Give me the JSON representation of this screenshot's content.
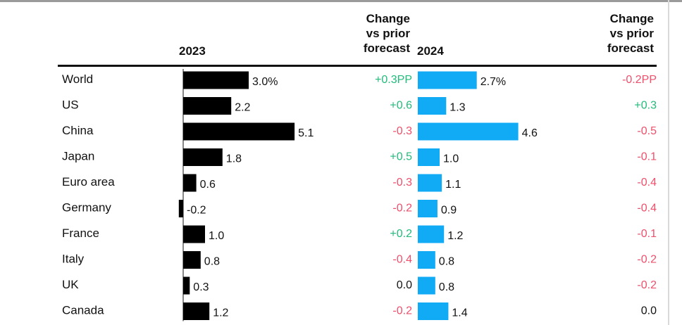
{
  "chart_data": {
    "type": "bar",
    "categories": [
      "World",
      "US",
      "China",
      "Japan",
      "Euro area",
      "Germany",
      "France",
      "Italy",
      "UK",
      "Canada"
    ],
    "series": [
      {
        "name": "2023",
        "values": [
          3.0,
          2.2,
          5.1,
          1.8,
          0.6,
          -0.2,
          1.0,
          0.8,
          0.3,
          1.2
        ],
        "labels": [
          "3.0%",
          "2.2",
          "5.1",
          "1.8",
          "0.6",
          "-0.2",
          "1.0",
          "0.8",
          "0.3",
          "1.2"
        ],
        "color": "#000000",
        "change_header": [
          "Change",
          "vs prior",
          "forecast"
        ],
        "change": [
          "+0.3PP",
          "+0.6",
          "-0.3",
          "+0.5",
          "-0.3",
          "-0.2",
          "+0.2",
          "-0.4",
          "0.0",
          "-0.2"
        ]
      },
      {
        "name": "2024",
        "values": [
          2.7,
          1.3,
          4.6,
          1.0,
          1.1,
          0.9,
          1.2,
          0.8,
          0.8,
          1.4
        ],
        "labels": [
          "2.7%",
          "1.3",
          "4.6",
          "1.0",
          "1.1",
          "0.9",
          "1.2",
          "0.8",
          "0.8",
          "1.4"
        ],
        "color": "#11aaf5",
        "change_header": [
          "Change",
          "vs prior",
          "forecast"
        ],
        "change": [
          "-0.2PP",
          "+0.3",
          "-0.5",
          "-0.1",
          "-0.4",
          "-0.4",
          "-0.1",
          "-0.2",
          "-0.2",
          "0.0"
        ]
      }
    ],
    "colors": {
      "positive": "#22bb7a",
      "negative": "#ef4f6b",
      "neutral": "#111111"
    }
  }
}
